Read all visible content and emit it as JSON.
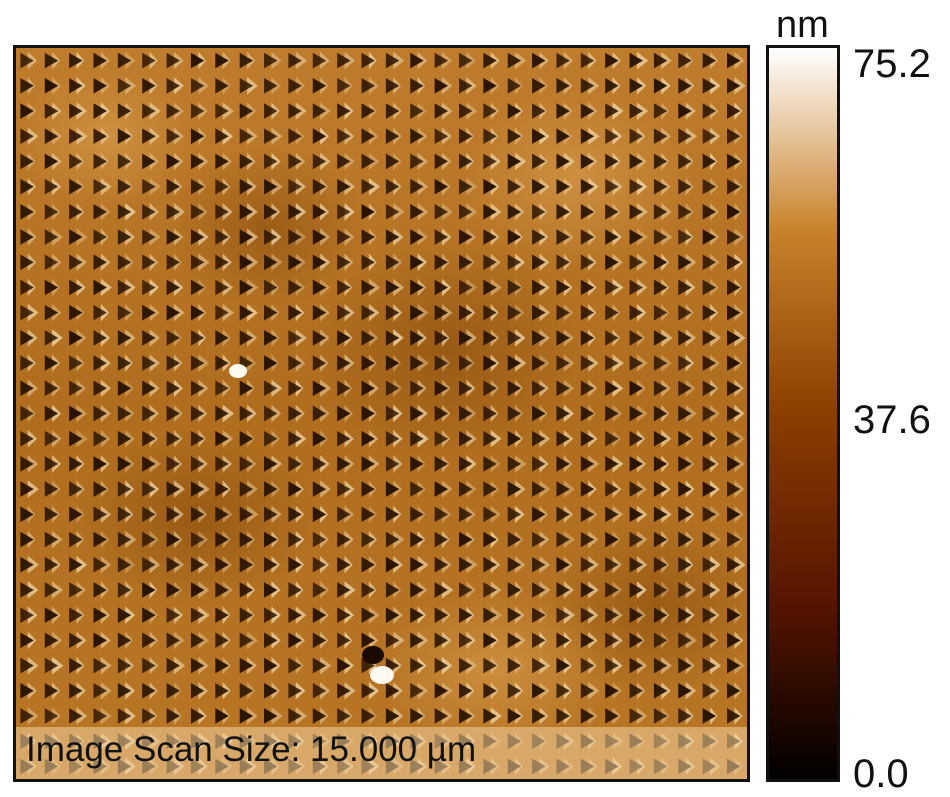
{
  "image": {
    "caption": "Image Scan Size: 15.000 µm",
    "surface": {
      "pattern": "triangular pits",
      "columns": 30,
      "rows": 29,
      "base_color": "#b87422",
      "pit_color": "#2a1400",
      "highlight_color": "#f2d6a6"
    }
  },
  "colorbar": {
    "unit": "nm",
    "max": "75.2",
    "mid": "37.6",
    "min": "0.0",
    "stops": [
      "#ffffff",
      "#c8822a",
      "#8a3e00",
      "#5a1500",
      "#000000"
    ]
  }
}
